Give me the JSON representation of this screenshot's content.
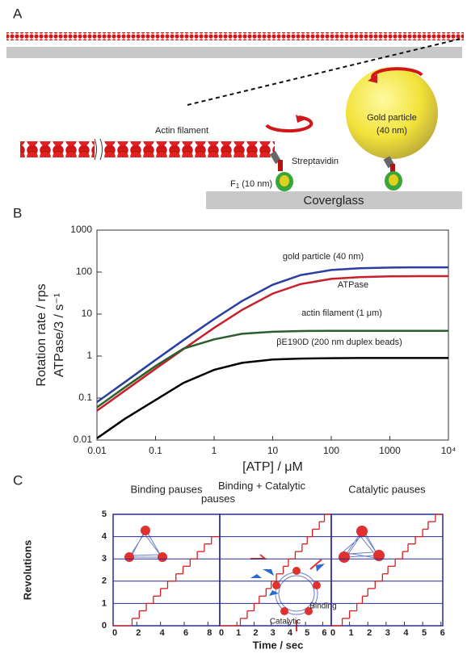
{
  "panel_a": {
    "label": "A",
    "actin": "Actin filament",
    "gold": "Gold particle",
    "gold_size": "(40 nm)",
    "streptavidin": "Streptavidin",
    "f1": "F",
    "f1_sub": "1",
    "f1_size": " (10 nm)",
    "coverglass": "Coverglass"
  },
  "panel_b": {
    "label": "B"
  },
  "panel_c": {
    "label": "C",
    "xlabel": "Time / sec",
    "ylabel": "Revolutions"
  },
  "chart_data": [
    {
      "type": "line",
      "xscale": "log",
      "yscale": "log",
      "xlabel": "[ATP] / μM",
      "ylabel": [
        "Rotation rate / rps",
        "ATPase/3 / s⁻¹"
      ],
      "xlim": [
        0.01,
        10000
      ],
      "ylim": [
        0.01,
        1000
      ],
      "xticks": [
        0.01,
        0.1,
        1,
        10,
        100,
        1000,
        {
          "value": 10000,
          "label": "10⁴"
        }
      ],
      "yticks": [
        0.01,
        0.1,
        1,
        10,
        100,
        1000
      ],
      "x": [
        0.01,
        0.03,
        0.1,
        0.3,
        1,
        3,
        10,
        30,
        100,
        300,
        1000,
        3000,
        10000
      ],
      "series": [
        {
          "name": "gold particle (40 nm)",
          "color": "#2b3f9e",
          "values": [
            0.08,
            0.24,
            0.81,
            2.4,
            7.6,
            20.5,
            50,
            85,
            112,
            123,
            128,
            130,
            130
          ]
        },
        {
          "name": "ATPase",
          "color": "#c8202a",
          "values": [
            0.05,
            0.15,
            0.5,
            1.47,
            4.7,
            12.6,
            30.8,
            52,
            69,
            76,
            79,
            80,
            80
          ]
        },
        {
          "name": "actin filament (1 μm)",
          "color": "#2d5e2d",
          "values": [
            0.06,
            0.18,
            0.58,
            1.5,
            2.5,
            3.4,
            3.8,
            3.95,
            4,
            4,
            4,
            4,
            4
          ]
        },
        {
          "name": "βE190D (200 nm duplex beads)",
          "color": "#000000",
          "values": [
            0.011,
            0.032,
            0.09,
            0.23,
            0.47,
            0.69,
            0.83,
            0.87,
            0.89,
            0.9,
            0.9,
            0.9,
            0.9
          ]
        }
      ]
    },
    {
      "type": "step",
      "title": "Binding pauses",
      "color": "#d42020",
      "xlim": [
        0,
        9
      ],
      "ylim": [
        0,
        5
      ],
      "xticks": [
        0,
        2,
        4,
        6,
        8
      ],
      "yticks": [
        0,
        1,
        2,
        3,
        4,
        5
      ],
      "x": [
        0,
        1.6,
        2.2,
        2.8,
        3.4,
        4.0,
        4.6,
        5.3,
        5.9,
        6.5,
        7.1,
        7.7,
        8.3
      ],
      "values": [
        0,
        0.33,
        0.67,
        1,
        1.33,
        1.67,
        2,
        2.33,
        2.67,
        3,
        3.33,
        3.67,
        4
      ]
    },
    {
      "type": "step",
      "title": "Binding + Catalytic pauses",
      "color": "#d42020",
      "xlim": [
        0,
        6.5
      ],
      "ylim": [
        0,
        5
      ],
      "xticks": [
        0,
        1,
        2,
        3,
        4,
        5,
        6
      ],
      "yticks": [
        0,
        1,
        2,
        3,
        4,
        5
      ],
      "annotations": [
        "Binding",
        "Catalytic"
      ],
      "x": [
        0,
        1.2,
        1.6,
        2.0,
        2.3,
        2.7,
        3.0,
        3.3,
        3.7,
        4.0,
        4.4,
        4.8,
        5.1,
        5.4,
        5.8,
        6.1
      ],
      "values": [
        0,
        0.33,
        0.67,
        1,
        1.33,
        1.67,
        2,
        2.33,
        2.67,
        3,
        3.33,
        3.67,
        4,
        4.33,
        4.67,
        5
      ]
    },
    {
      "type": "step",
      "title": "Catalytic pauses",
      "color": "#d42020",
      "xlim": [
        0,
        6.1
      ],
      "ylim": [
        0,
        5
      ],
      "xticks": [
        0,
        1,
        2,
        3,
        4,
        5,
        6
      ],
      "yticks": [
        0,
        1,
        2,
        3,
        4,
        5
      ],
      "x": [
        0,
        0.6,
        1.0,
        1.4,
        1.7,
        2.0,
        2.4,
        2.8,
        3.1,
        3.5,
        3.9,
        4.2,
        4.6,
        5.0,
        5.3,
        5.7
      ],
      "values": [
        0,
        0.33,
        0.67,
        1,
        1.33,
        1.67,
        2,
        2.33,
        2.67,
        3,
        3.33,
        3.67,
        4,
        4.33,
        4.67,
        5
      ]
    }
  ]
}
